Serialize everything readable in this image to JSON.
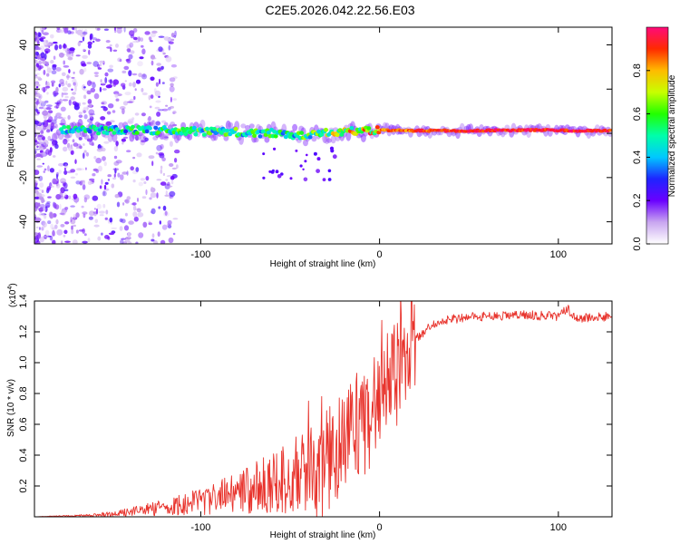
{
  "title": "C2E5.2026.042.22.56.E03",
  "chart_data": [
    {
      "type": "heatmap",
      "name": "spectrogram",
      "xlabel": "Height of straight line (km)",
      "ylabel": "Frequency (Hz)",
      "xlim": [
        -193,
        130
      ],
      "ylim": [
        -50,
        48
      ],
      "xticks": [
        -100,
        0,
        100
      ],
      "yticks": [
        -40,
        -20,
        0,
        20,
        40
      ],
      "colorbar": {
        "label": "Normalized spectral amplitude",
        "range": [
          0.0,
          1.0
        ],
        "ticks": [
          "0.0",
          "0.2",
          "0.4",
          "0.6",
          "0.8"
        ]
      },
      "ridge": {
        "description_points_x": [
          -160,
          -120,
          -100,
          -80,
          -60,
          -40,
          -20,
          0,
          20,
          50,
          90,
          110,
          130
        ],
        "frequency_hz": [
          1.5,
          1.2,
          0.8,
          0.5,
          0.0,
          -1.0,
          1.0,
          1.5,
          1.2,
          1.2,
          1.5,
          1.2,
          1.2
        ],
        "peak_amplitude": [
          0.5,
          0.6,
          0.6,
          0.6,
          0.55,
          0.6,
          0.8,
          0.9,
          0.95,
          1.0,
          1.0,
          1.0,
          1.0
        ]
      }
    },
    {
      "type": "line",
      "name": "snr",
      "xlabel": "Height of straight line (km)",
      "ylabel": "SNR (10 * v/v)",
      "exponent_label": "(x10",
      "exponent_power": "4",
      "exponent_close": ")",
      "xlim": [
        -193,
        130
      ],
      "ylim": [
        0.0,
        1.4
      ],
      "xticks": [
        -100,
        0,
        100
      ],
      "yticks": [
        "0.2",
        "0.4",
        "0.6",
        "0.8",
        "1.0",
        "1.2",
        "1.4"
      ],
      "color": "#e8332c",
      "series_envelope": {
        "x": [
          -193,
          -160,
          -140,
          -120,
          -100,
          -80,
          -60,
          -40,
          -30,
          -20,
          -10,
          0,
          10,
          20,
          30,
          40,
          50,
          60,
          80,
          100,
          105,
          110,
          130
        ],
        "y": [
          0.0,
          0.01,
          0.03,
          0.06,
          0.1,
          0.15,
          0.22,
          0.3,
          0.34,
          0.5,
          0.65,
          0.8,
          1.0,
          1.15,
          1.25,
          1.28,
          1.3,
          1.3,
          1.31,
          1.3,
          1.35,
          1.29,
          1.3
        ]
      }
    }
  ],
  "axis_labels": {
    "top_x": "Height of straight line (km)",
    "top_y": "Frequency (Hz)",
    "bottom_x": "Height of straight line (km)",
    "bottom_y": "SNR (10 * v/v)",
    "colorbar": "Normalized spectral amplitude"
  }
}
